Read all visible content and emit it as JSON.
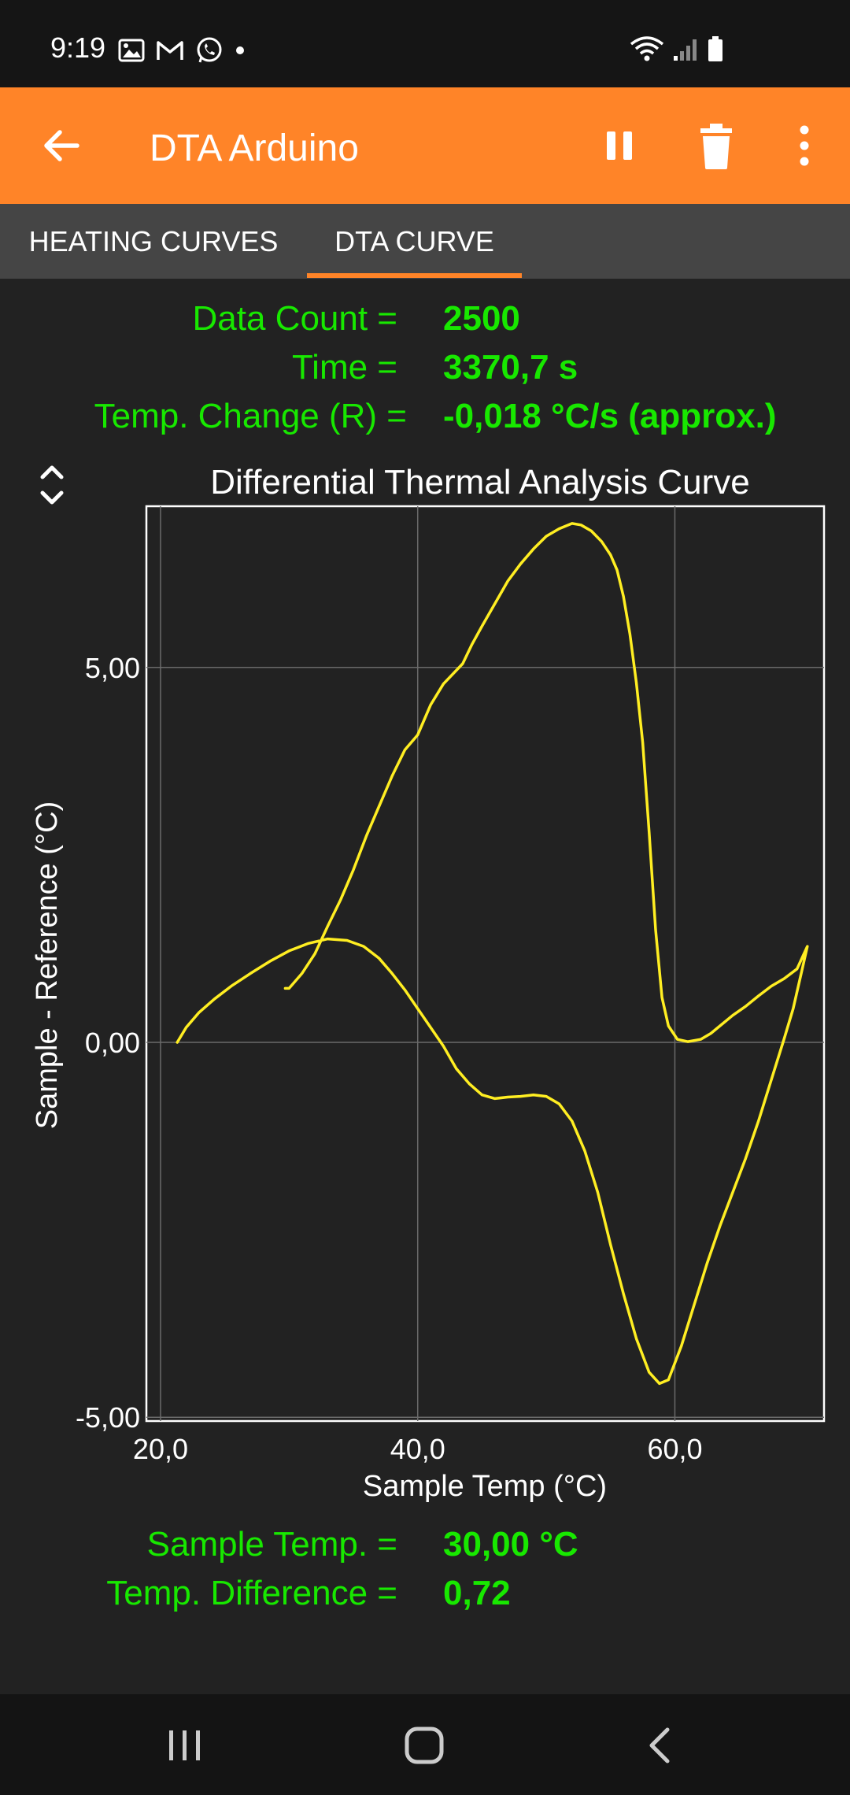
{
  "status_bar": {
    "time": "9:19",
    "left_icons": [
      "gallery-icon",
      "gmail-icon",
      "whatsapp-icon",
      "dot-icon"
    ],
    "right_icons": [
      "wifi-icon",
      "signal-icon",
      "battery-icon"
    ]
  },
  "app_bar": {
    "title": "DTA Arduino",
    "icons": [
      "back-arrow-icon",
      "pause-icon",
      "delete-icon",
      "more-vert-icon"
    ],
    "accent_color": "#ff8428"
  },
  "tabs": [
    {
      "label": "HEATING CURVES",
      "selected": false
    },
    {
      "label": "DTA CURVE",
      "selected": true
    }
  ],
  "stats": {
    "data_count_label": "Data Count =",
    "data_count_value": "2500",
    "time_label": "Time =",
    "time_value": "3370,7 s",
    "temp_change_label": "Temp. Change (R) =",
    "temp_change_value": "-0,018 °C/s (approx.)",
    "text_color": "#18e800"
  },
  "cursor": {
    "sample_temp_label": "Sample Temp. =",
    "sample_temp_value": "30,00 °C",
    "temp_diff_label": "Temp. Difference =",
    "temp_diff_value": "0,72"
  },
  "chart_data": {
    "type": "line",
    "title": "Differential Thermal Analysis Curve",
    "xlabel": "Sample Temp (°C)",
    "ylabel": "Sample - Reference (°C)",
    "xlim": [
      18.9,
      71.6
    ],
    "ylim": [
      -5.05,
      7.15
    ],
    "x_ticks": [
      20,
      40,
      60
    ],
    "x_tick_labels": [
      "20,0",
      "40,0",
      "60,0"
    ],
    "y_ticks": [
      -5,
      0,
      5
    ],
    "y_tick_labels": [
      "-5,00",
      "0,00",
      "5,00"
    ],
    "grid": true,
    "line_color": "#ffee22",
    "series": [
      {
        "points": [
          [
            21.3,
            0.0
          ],
          [
            22.0,
            0.2
          ],
          [
            23.0,
            0.4
          ],
          [
            24.2,
            0.58
          ],
          [
            25.5,
            0.75
          ],
          [
            27.0,
            0.92
          ],
          [
            28.5,
            1.08
          ],
          [
            30.0,
            1.22
          ],
          [
            31.5,
            1.32
          ],
          [
            33.0,
            1.38
          ],
          [
            34.5,
            1.36
          ],
          [
            35.8,
            1.28
          ],
          [
            37.0,
            1.12
          ],
          [
            38.0,
            0.92
          ],
          [
            39.0,
            0.7
          ],
          [
            40.0,
            0.45
          ],
          [
            41.0,
            0.2
          ],
          [
            42.0,
            -0.05
          ],
          [
            43.0,
            -0.35
          ],
          [
            44.0,
            -0.55
          ],
          [
            45.0,
            -0.7
          ],
          [
            46.0,
            -0.75
          ],
          [
            47.0,
            -0.73
          ],
          [
            48.0,
            -0.72
          ],
          [
            49.0,
            -0.7
          ],
          [
            50.0,
            -0.72
          ],
          [
            51.0,
            -0.82
          ],
          [
            52.0,
            -1.05
          ],
          [
            53.0,
            -1.45
          ],
          [
            54.0,
            -2.0
          ],
          [
            55.0,
            -2.7
          ],
          [
            56.0,
            -3.35
          ],
          [
            57.0,
            -3.95
          ],
          [
            58.0,
            -4.4
          ],
          [
            58.8,
            -4.55
          ],
          [
            59.5,
            -4.5
          ],
          [
            60.5,
            -4.05
          ],
          [
            61.5,
            -3.5
          ],
          [
            62.5,
            -2.95
          ],
          [
            63.5,
            -2.45
          ],
          [
            64.5,
            -2.0
          ],
          [
            65.5,
            -1.55
          ],
          [
            66.5,
            -1.05
          ],
          [
            67.5,
            -0.5
          ],
          [
            68.5,
            0.05
          ],
          [
            69.2,
            0.45
          ],
          [
            69.8,
            0.9
          ],
          [
            70.3,
            1.28
          ],
          [
            69.5,
            0.98
          ],
          [
            68.5,
            0.85
          ],
          [
            67.5,
            0.75
          ],
          [
            66.5,
            0.62
          ],
          [
            65.5,
            0.48
          ],
          [
            64.5,
            0.36
          ],
          [
            63.5,
            0.22
          ],
          [
            62.8,
            0.12
          ],
          [
            62.0,
            0.04
          ],
          [
            61.0,
            0.01
          ],
          [
            60.2,
            0.04
          ],
          [
            59.5,
            0.22
          ],
          [
            59.0,
            0.6
          ],
          [
            58.5,
            1.5
          ],
          [
            58.0,
            2.8
          ],
          [
            57.5,
            4.0
          ],
          [
            57.0,
            4.8
          ],
          [
            56.5,
            5.45
          ],
          [
            56.0,
            5.95
          ],
          [
            55.5,
            6.3
          ],
          [
            55.0,
            6.5
          ],
          [
            54.3,
            6.68
          ],
          [
            53.5,
            6.82
          ],
          [
            52.7,
            6.9
          ],
          [
            52.0,
            6.92
          ],
          [
            51.0,
            6.85
          ],
          [
            50.0,
            6.75
          ],
          [
            49.0,
            6.58
          ],
          [
            48.0,
            6.38
          ],
          [
            47.0,
            6.15
          ],
          [
            46.0,
            5.85
          ],
          [
            45.0,
            5.55
          ],
          [
            44.2,
            5.3
          ],
          [
            43.5,
            5.05
          ],
          [
            42.0,
            4.78
          ],
          [
            41.0,
            4.5
          ],
          [
            40.0,
            4.1
          ],
          [
            39.0,
            3.9
          ],
          [
            38.0,
            3.55
          ],
          [
            37.0,
            3.15
          ],
          [
            36.0,
            2.75
          ],
          [
            35.0,
            2.3
          ],
          [
            34.0,
            1.9
          ],
          [
            33.0,
            1.55
          ],
          [
            32.0,
            1.18
          ],
          [
            31.0,
            0.92
          ],
          [
            30.0,
            0.72
          ],
          [
            29.7,
            0.72
          ]
        ]
      }
    ]
  }
}
